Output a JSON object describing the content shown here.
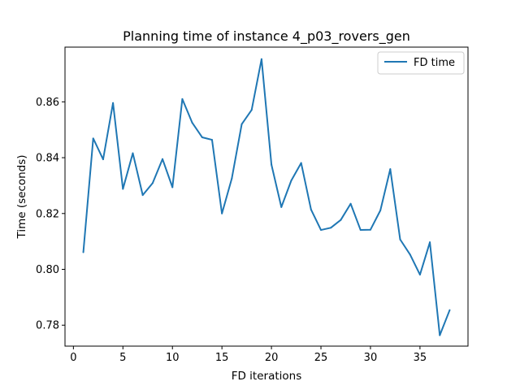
{
  "chart_data": {
    "type": "line",
    "title": "Planning time of instance 4_p03_rovers_gen",
    "xlabel": "FD iterations",
    "ylabel": "Time (seconds)",
    "xlim": [
      -0.85,
      39.85
    ],
    "ylim": [
      0.7725,
      0.8796
    ],
    "xticks": [
      0,
      5,
      10,
      15,
      20,
      25,
      30,
      35
    ],
    "xtick_labels": [
      "0",
      "5",
      "10",
      "15",
      "20",
      "25",
      "30",
      "35"
    ],
    "yticks": [
      0.78,
      0.8,
      0.82,
      0.84,
      0.86
    ],
    "ytick_labels": [
      "0.78",
      "0.80",
      "0.82",
      "0.84",
      "0.86"
    ],
    "grid": false,
    "legend_position": "upper right",
    "series": [
      {
        "name": "FD time",
        "color": "#1f77b4",
        "x": [
          1,
          2,
          3,
          4,
          5,
          6,
          7,
          8,
          9,
          10,
          11,
          12,
          13,
          14,
          15,
          16,
          17,
          18,
          19,
          20,
          21,
          22,
          23,
          24,
          25,
          26,
          27,
          28,
          29,
          30,
          31,
          32,
          33,
          34,
          35,
          36,
          37,
          38
        ],
        "y": [
          0.8061,
          0.8469,
          0.8394,
          0.8596,
          0.8288,
          0.8416,
          0.8266,
          0.8309,
          0.8395,
          0.8294,
          0.861,
          0.8525,
          0.8473,
          0.8464,
          0.82,
          0.8326,
          0.852,
          0.8571,
          0.8753,
          0.8375,
          0.8223,
          0.8318,
          0.8381,
          0.8214,
          0.8141,
          0.8149,
          0.8177,
          0.8235,
          0.8141,
          0.8142,
          0.8211,
          0.8359,
          0.8107,
          0.8053,
          0.7981,
          0.8097,
          0.7764,
          0.7854
        ]
      }
    ]
  }
}
